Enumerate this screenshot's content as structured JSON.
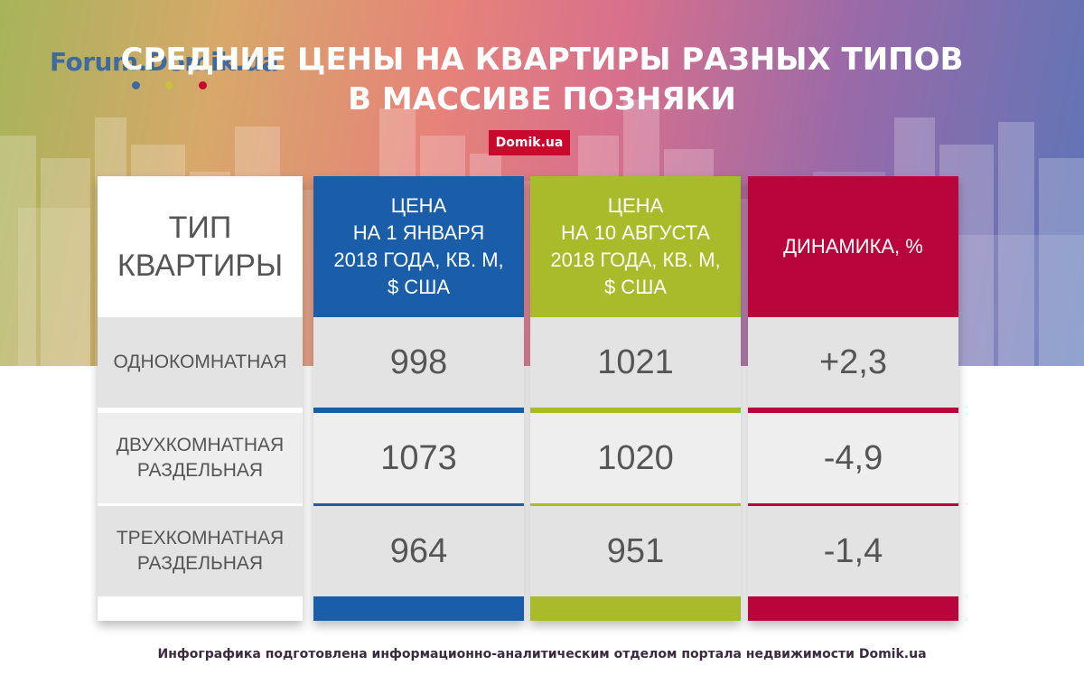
{
  "logo": {
    "text": "Forum.Domik.ua",
    "dot_colors": [
      "#3f6aa0",
      "#c9c040",
      "#c9082e"
    ]
  },
  "title": {
    "line1": "СРЕДНИЕ ЦЕНЫ НА КВАРТИРЫ РАЗНЫХ ТИПОВ",
    "line2": "В МАССИВЕ ПОЗНЯКИ"
  },
  "badge": "Domik.ua",
  "table": {
    "headers": {
      "type": [
        "ТИП",
        "КВАРТИРЫ"
      ],
      "price_jan": [
        "ЦЕНА",
        "НА 1 ЯНВАРЯ",
        "2018 ГОДА, КВ. М,",
        "$ США"
      ],
      "price_aug": [
        "ЦЕНА",
        "НА 10 АВГУСТА",
        "2018 ГОДА, КВ. М,",
        "$ США"
      ],
      "dynamics": [
        "ДИНАМИКА, %"
      ]
    },
    "rows": [
      {
        "type": [
          "ОДНОКОМНАТНАЯ"
        ],
        "price_jan": "998",
        "price_aug": "1021",
        "dynamics": "+2,3"
      },
      {
        "type": [
          "ДВУХКОМНАТНАЯ",
          "РАЗДЕЛЬНАЯ"
        ],
        "price_jan": "1073",
        "price_aug": "1020",
        "dynamics": "-4,9"
      },
      {
        "type": [
          "ТРЕХКОМНАТНАЯ",
          "РАЗДЕЛЬНАЯ"
        ],
        "price_jan": "964",
        "price_aug": "951",
        "dynamics": "-1,4"
      }
    ]
  },
  "colors": {
    "blue": "#1a5da8",
    "green": "#a9ba2b",
    "red": "#b8063c",
    "badge": "#c9082e"
  },
  "footer": "Инфографика подготовлена информационно-аналитическим отделом портала недвижимости Domik.ua"
}
